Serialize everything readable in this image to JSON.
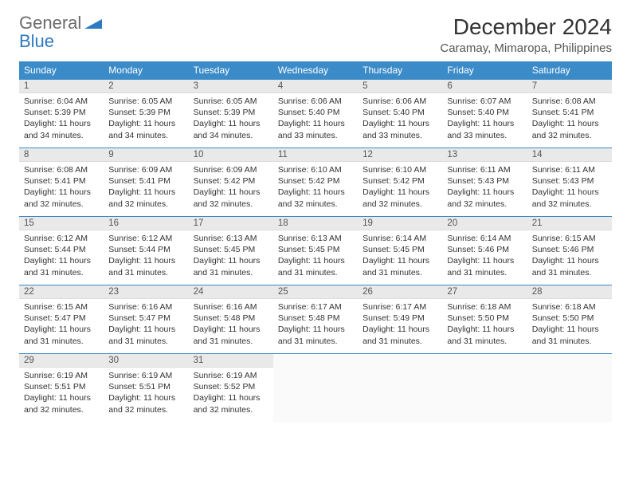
{
  "brand": {
    "general": "General",
    "blue": "Blue"
  },
  "title": "December 2024",
  "location": "Caramay, Mimaropa, Philippines",
  "colors": {
    "header_bg": "#3b8bc8",
    "header_text": "#ffffff",
    "daynum_bg": "#e9e9e9",
    "row_border": "#3b8bc8",
    "logo_gray": "#6b6b6b",
    "logo_blue": "#2c7ac0"
  },
  "weekdays": [
    "Sunday",
    "Monday",
    "Tuesday",
    "Wednesday",
    "Thursday",
    "Friday",
    "Saturday"
  ],
  "weeks": [
    [
      {
        "n": "1",
        "sr": "Sunrise: 6:04 AM",
        "ss": "Sunset: 5:39 PM",
        "d1": "Daylight: 11 hours",
        "d2": "and 34 minutes."
      },
      {
        "n": "2",
        "sr": "Sunrise: 6:05 AM",
        "ss": "Sunset: 5:39 PM",
        "d1": "Daylight: 11 hours",
        "d2": "and 34 minutes."
      },
      {
        "n": "3",
        "sr": "Sunrise: 6:05 AM",
        "ss": "Sunset: 5:39 PM",
        "d1": "Daylight: 11 hours",
        "d2": "and 34 minutes."
      },
      {
        "n": "4",
        "sr": "Sunrise: 6:06 AM",
        "ss": "Sunset: 5:40 PM",
        "d1": "Daylight: 11 hours",
        "d2": "and 33 minutes."
      },
      {
        "n": "5",
        "sr": "Sunrise: 6:06 AM",
        "ss": "Sunset: 5:40 PM",
        "d1": "Daylight: 11 hours",
        "d2": "and 33 minutes."
      },
      {
        "n": "6",
        "sr": "Sunrise: 6:07 AM",
        "ss": "Sunset: 5:40 PM",
        "d1": "Daylight: 11 hours",
        "d2": "and 33 minutes."
      },
      {
        "n": "7",
        "sr": "Sunrise: 6:08 AM",
        "ss": "Sunset: 5:41 PM",
        "d1": "Daylight: 11 hours",
        "d2": "and 32 minutes."
      }
    ],
    [
      {
        "n": "8",
        "sr": "Sunrise: 6:08 AM",
        "ss": "Sunset: 5:41 PM",
        "d1": "Daylight: 11 hours",
        "d2": "and 32 minutes."
      },
      {
        "n": "9",
        "sr": "Sunrise: 6:09 AM",
        "ss": "Sunset: 5:41 PM",
        "d1": "Daylight: 11 hours",
        "d2": "and 32 minutes."
      },
      {
        "n": "10",
        "sr": "Sunrise: 6:09 AM",
        "ss": "Sunset: 5:42 PM",
        "d1": "Daylight: 11 hours",
        "d2": "and 32 minutes."
      },
      {
        "n": "11",
        "sr": "Sunrise: 6:10 AM",
        "ss": "Sunset: 5:42 PM",
        "d1": "Daylight: 11 hours",
        "d2": "and 32 minutes."
      },
      {
        "n": "12",
        "sr": "Sunrise: 6:10 AM",
        "ss": "Sunset: 5:42 PM",
        "d1": "Daylight: 11 hours",
        "d2": "and 32 minutes."
      },
      {
        "n": "13",
        "sr": "Sunrise: 6:11 AM",
        "ss": "Sunset: 5:43 PM",
        "d1": "Daylight: 11 hours",
        "d2": "and 32 minutes."
      },
      {
        "n": "14",
        "sr": "Sunrise: 6:11 AM",
        "ss": "Sunset: 5:43 PM",
        "d1": "Daylight: 11 hours",
        "d2": "and 32 minutes."
      }
    ],
    [
      {
        "n": "15",
        "sr": "Sunrise: 6:12 AM",
        "ss": "Sunset: 5:44 PM",
        "d1": "Daylight: 11 hours",
        "d2": "and 31 minutes."
      },
      {
        "n": "16",
        "sr": "Sunrise: 6:12 AM",
        "ss": "Sunset: 5:44 PM",
        "d1": "Daylight: 11 hours",
        "d2": "and 31 minutes."
      },
      {
        "n": "17",
        "sr": "Sunrise: 6:13 AM",
        "ss": "Sunset: 5:45 PM",
        "d1": "Daylight: 11 hours",
        "d2": "and 31 minutes."
      },
      {
        "n": "18",
        "sr": "Sunrise: 6:13 AM",
        "ss": "Sunset: 5:45 PM",
        "d1": "Daylight: 11 hours",
        "d2": "and 31 minutes."
      },
      {
        "n": "19",
        "sr": "Sunrise: 6:14 AM",
        "ss": "Sunset: 5:45 PM",
        "d1": "Daylight: 11 hours",
        "d2": "and 31 minutes."
      },
      {
        "n": "20",
        "sr": "Sunrise: 6:14 AM",
        "ss": "Sunset: 5:46 PM",
        "d1": "Daylight: 11 hours",
        "d2": "and 31 minutes."
      },
      {
        "n": "21",
        "sr": "Sunrise: 6:15 AM",
        "ss": "Sunset: 5:46 PM",
        "d1": "Daylight: 11 hours",
        "d2": "and 31 minutes."
      }
    ],
    [
      {
        "n": "22",
        "sr": "Sunrise: 6:15 AM",
        "ss": "Sunset: 5:47 PM",
        "d1": "Daylight: 11 hours",
        "d2": "and 31 minutes."
      },
      {
        "n": "23",
        "sr": "Sunrise: 6:16 AM",
        "ss": "Sunset: 5:47 PM",
        "d1": "Daylight: 11 hours",
        "d2": "and 31 minutes."
      },
      {
        "n": "24",
        "sr": "Sunrise: 6:16 AM",
        "ss": "Sunset: 5:48 PM",
        "d1": "Daylight: 11 hours",
        "d2": "and 31 minutes."
      },
      {
        "n": "25",
        "sr": "Sunrise: 6:17 AM",
        "ss": "Sunset: 5:48 PM",
        "d1": "Daylight: 11 hours",
        "d2": "and 31 minutes."
      },
      {
        "n": "26",
        "sr": "Sunrise: 6:17 AM",
        "ss": "Sunset: 5:49 PM",
        "d1": "Daylight: 11 hours",
        "d2": "and 31 minutes."
      },
      {
        "n": "27",
        "sr": "Sunrise: 6:18 AM",
        "ss": "Sunset: 5:50 PM",
        "d1": "Daylight: 11 hours",
        "d2": "and 31 minutes."
      },
      {
        "n": "28",
        "sr": "Sunrise: 6:18 AM",
        "ss": "Sunset: 5:50 PM",
        "d1": "Daylight: 11 hours",
        "d2": "and 31 minutes."
      }
    ],
    [
      {
        "n": "29",
        "sr": "Sunrise: 6:19 AM",
        "ss": "Sunset: 5:51 PM",
        "d1": "Daylight: 11 hours",
        "d2": "and 32 minutes."
      },
      {
        "n": "30",
        "sr": "Sunrise: 6:19 AM",
        "ss": "Sunset: 5:51 PM",
        "d1": "Daylight: 11 hours",
        "d2": "and 32 minutes."
      },
      {
        "n": "31",
        "sr": "Sunrise: 6:19 AM",
        "ss": "Sunset: 5:52 PM",
        "d1": "Daylight: 11 hours",
        "d2": "and 32 minutes."
      },
      null,
      null,
      null,
      null
    ]
  ]
}
